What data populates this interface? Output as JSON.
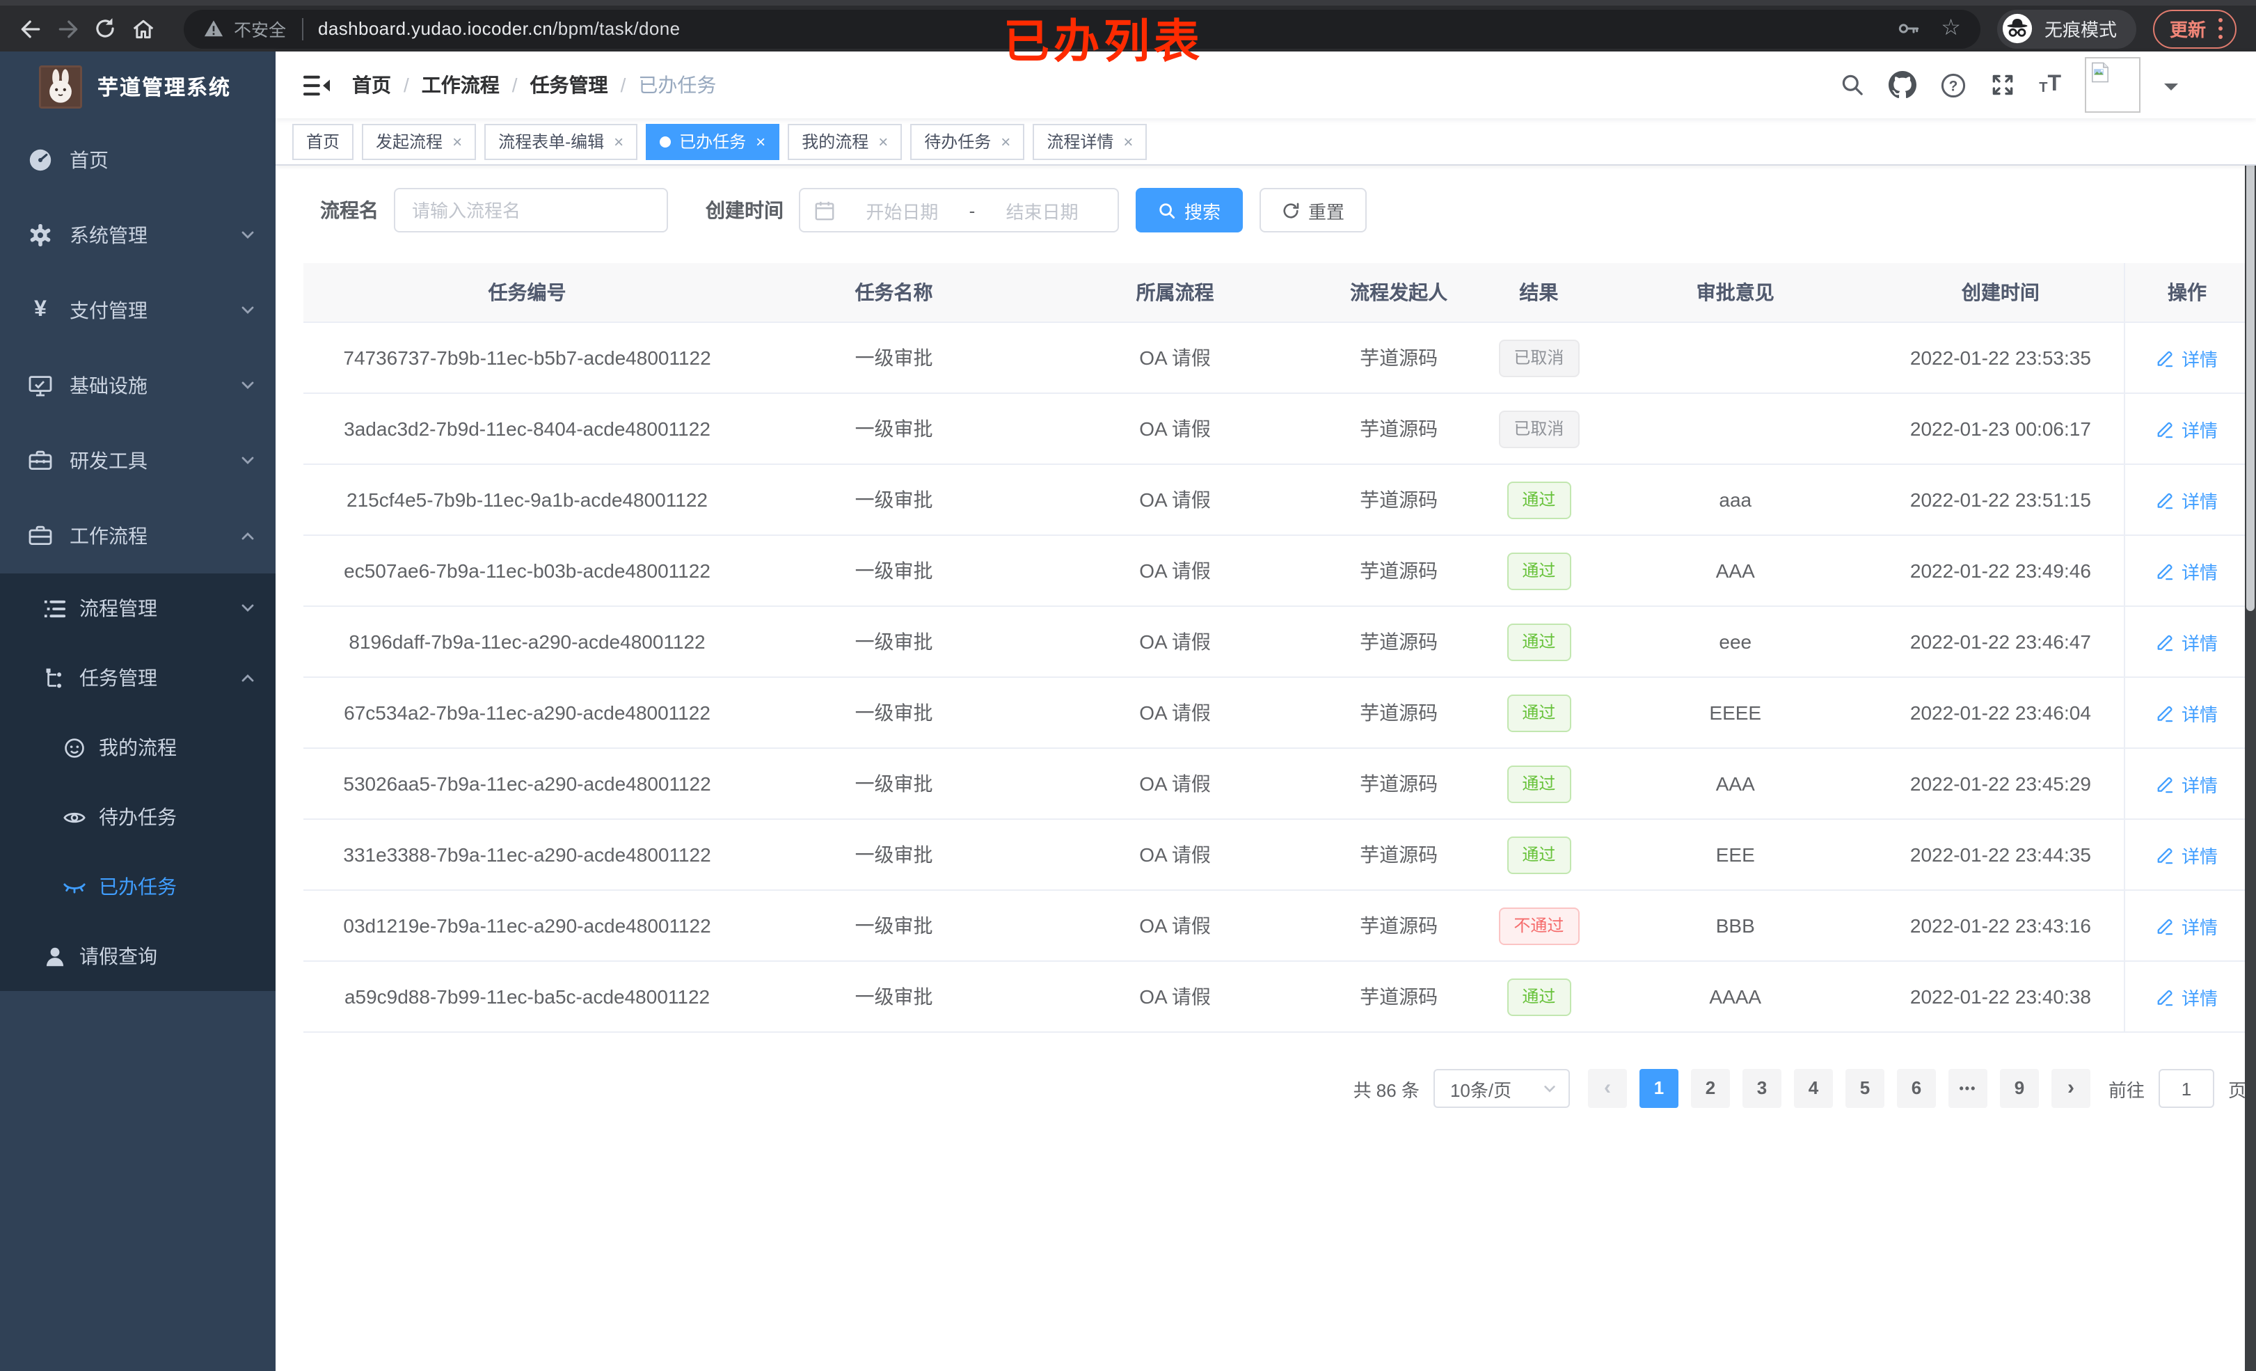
{
  "annotation": {
    "text": "已办列表",
    "color": "#fe2b01"
  },
  "browser": {
    "security_label": "不安全",
    "url_domain": "dashboard.yudao.iocoder.cn",
    "url_path": "/bpm/task/done",
    "incognito_label": "无痕模式",
    "update_label": "更新"
  },
  "sidebar": {
    "app_title": "芋道管理系统",
    "items": [
      {
        "label": "首页"
      },
      {
        "label": "系统管理"
      },
      {
        "label": "支付管理"
      },
      {
        "label": "基础设施"
      },
      {
        "label": "研发工具"
      },
      {
        "label": "工作流程"
      }
    ],
    "submenu": [
      {
        "label": "流程管理"
      },
      {
        "label": "任务管理"
      },
      {
        "label": "我的流程"
      },
      {
        "label": "待办任务"
      },
      {
        "label": "已办任务"
      },
      {
        "label": "请假查询"
      }
    ]
  },
  "header": {
    "breadcrumb": [
      "首页",
      "工作流程",
      "任务管理",
      "已办任务"
    ]
  },
  "tabs": [
    {
      "label": "首页",
      "closable": false,
      "active": false
    },
    {
      "label": "发起流程",
      "closable": true,
      "active": false
    },
    {
      "label": "流程表单-编辑",
      "closable": true,
      "active": false
    },
    {
      "label": "已办任务",
      "closable": true,
      "active": true
    },
    {
      "label": "我的流程",
      "closable": true,
      "active": false
    },
    {
      "label": "待办任务",
      "closable": true,
      "active": false
    },
    {
      "label": "流程详情",
      "closable": true,
      "active": false
    }
  ],
  "filters": {
    "name_label": "流程名",
    "name_placeholder": "请输入流程名",
    "time_label": "创建时间",
    "start_placeholder": "开始日期",
    "separator": "-",
    "end_placeholder": "结束日期",
    "search_label": "搜索",
    "reset_label": "重置"
  },
  "table": {
    "columns": [
      "任务编号",
      "任务名称",
      "所属流程",
      "流程发起人",
      "结果",
      "审批意见",
      "创建时间",
      "操作"
    ],
    "detail_label": "详情",
    "rows": [
      {
        "id": "74736737-7b9b-11ec-b5b7-acde48001122",
        "name": "一级审批",
        "process": "OA 请假",
        "starter": "芋道源码",
        "result": "已取消",
        "result_type": "info",
        "comment": "",
        "created": "2022-01-22 23:53:35"
      },
      {
        "id": "3adac3d2-7b9d-11ec-8404-acde48001122",
        "name": "一级审批",
        "process": "OA 请假",
        "starter": "芋道源码",
        "result": "已取消",
        "result_type": "info",
        "comment": "",
        "created": "2022-01-23 00:06:17"
      },
      {
        "id": "215cf4e5-7b9b-11ec-9a1b-acde48001122",
        "name": "一级审批",
        "process": "OA 请假",
        "starter": "芋道源码",
        "result": "通过",
        "result_type": "success",
        "comment": "aaa",
        "created": "2022-01-22 23:51:15"
      },
      {
        "id": "ec507ae6-7b9a-11ec-b03b-acde48001122",
        "name": "一级审批",
        "process": "OA 请假",
        "starter": "芋道源码",
        "result": "通过",
        "result_type": "success",
        "comment": "AAA",
        "created": "2022-01-22 23:49:46"
      },
      {
        "id": "8196daff-7b9a-11ec-a290-acde48001122",
        "name": "一级审批",
        "process": "OA 请假",
        "starter": "芋道源码",
        "result": "通过",
        "result_type": "success",
        "comment": "eee",
        "created": "2022-01-22 23:46:47"
      },
      {
        "id": "67c534a2-7b9a-11ec-a290-acde48001122",
        "name": "一级审批",
        "process": "OA 请假",
        "starter": "芋道源码",
        "result": "通过",
        "result_type": "success",
        "comment": "EEEE",
        "created": "2022-01-22 23:46:04"
      },
      {
        "id": "53026aa5-7b9a-11ec-a290-acde48001122",
        "name": "一级审批",
        "process": "OA 请假",
        "starter": "芋道源码",
        "result": "通过",
        "result_type": "success",
        "comment": "AAA",
        "created": "2022-01-22 23:45:29"
      },
      {
        "id": "331e3388-7b9a-11ec-a290-acde48001122",
        "name": "一级审批",
        "process": "OA 请假",
        "starter": "芋道源码",
        "result": "通过",
        "result_type": "success",
        "comment": "EEE",
        "created": "2022-01-22 23:44:35"
      },
      {
        "id": "03d1219e-7b9a-11ec-a290-acde48001122",
        "name": "一级审批",
        "process": "OA 请假",
        "starter": "芋道源码",
        "result": "不通过",
        "result_type": "danger",
        "comment": "BBB",
        "created": "2022-01-22 23:43:16"
      },
      {
        "id": "a59c9d88-7b99-11ec-ba5c-acde48001122",
        "name": "一级审批",
        "process": "OA 请假",
        "starter": "芋道源码",
        "result": "通过",
        "result_type": "success",
        "comment": "AAAA",
        "created": "2022-01-22 23:40:38"
      }
    ]
  },
  "pagination": {
    "total_label": "共 86 条",
    "page_size_label": "10条/页",
    "pages": [
      "1",
      "2",
      "3",
      "4",
      "5",
      "6",
      "•••",
      "9"
    ],
    "active_page": "1",
    "goto_label": "前往",
    "goto_value": "1",
    "unit_label": "页"
  },
  "colors": {
    "accent": "#409eff",
    "success": "#67c23a",
    "danger": "#f56c6c",
    "info": "#909399",
    "sidebar_bg": "#304156",
    "submenu_bg": "#1f2d3d",
    "annotation": "#fe2b01"
  }
}
